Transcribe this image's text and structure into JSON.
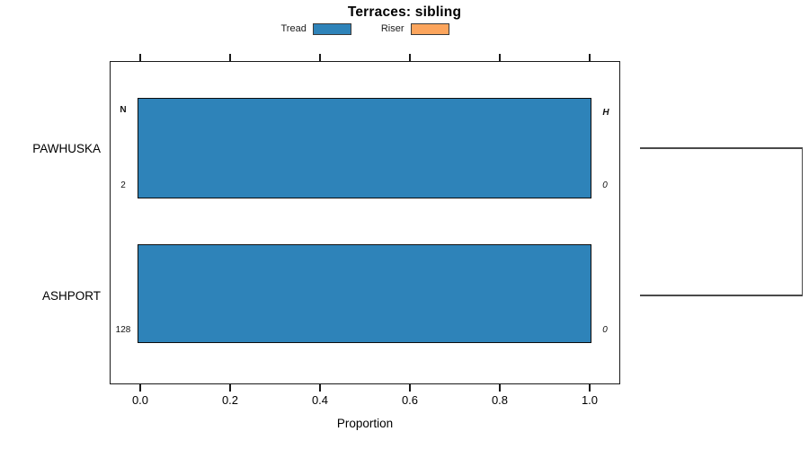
{
  "figure": {
    "title": "Terraces: sibling",
    "background": "#ffffff"
  },
  "legend": {
    "items": [
      {
        "label": "Tread",
        "color": "#2e83b9"
      },
      {
        "label": "Riser",
        "color": "#fca55d"
      }
    ]
  },
  "axis": {
    "xlabel": "Proportion",
    "ticks": [
      "0.0",
      "0.2",
      "0.4",
      "0.6",
      "0.8",
      "1.0"
    ]
  },
  "rows": [
    {
      "category": "PAWHUSKA",
      "left_header": "N",
      "left_count": "2",
      "right_header": "H",
      "right_count": "0",
      "tread_proportion": 1.0
    },
    {
      "category": "ASHPORT",
      "left_count": "128",
      "right_count": "0",
      "tread_proportion": 1.0
    }
  ],
  "chart_data": {
    "type": "bar",
    "orientation": "horizontal",
    "title": "Terraces: sibling",
    "xlabel": "Proportion",
    "xlim": [
      0,
      1
    ],
    "xticks": [
      0.0,
      0.2,
      0.4,
      0.6,
      0.8,
      1.0
    ],
    "categories": [
      "PAWHUSKA",
      "ASHPORT"
    ],
    "series": [
      {
        "name": "Tread",
        "color": "#2e83b9",
        "values": [
          1.0,
          1.0
        ]
      },
      {
        "name": "Riser",
        "color": "#fca55d",
        "values": [
          0.0,
          0.0
        ]
      }
    ],
    "annotations": {
      "left_column_header": "N",
      "right_column_header": "H",
      "N_values": [
        2,
        128
      ],
      "H_values": [
        0,
        0
      ]
    },
    "legend_position": "top",
    "grid": false,
    "right_margin_dendrogram": {
      "present": true,
      "joins": [
        "PAWHUSKA",
        "ASHPORT"
      ]
    }
  }
}
